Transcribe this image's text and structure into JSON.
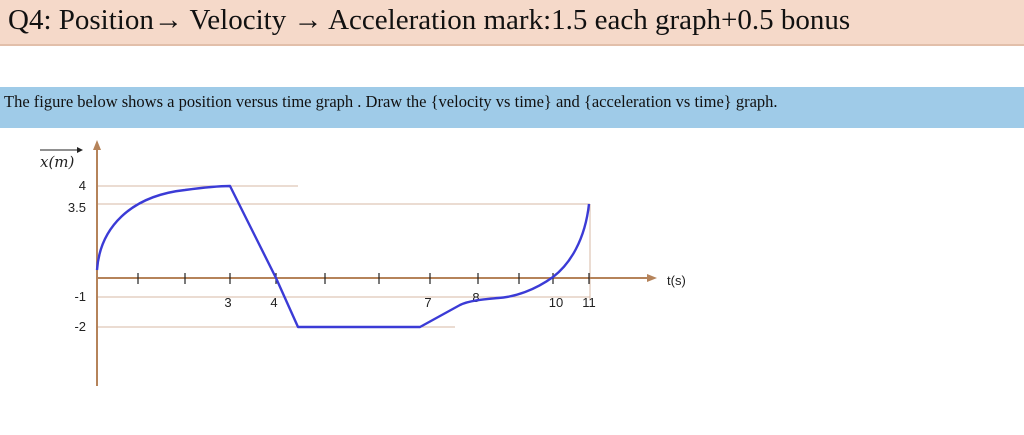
{
  "title": "Q4: Position→ Velocity → Acceleration   mark:1.5 each graph+0.5 bonus",
  "instruction": "The figure below shows a position versus time graph . Draw the {velocity vs time} and {acceleration vs time} graph.",
  "colors": {
    "title_bg": "#f5d9c9",
    "instruction_bg": "#9fcbe8",
    "curve": "#3b3bd6",
    "axis": "#b5835a",
    "gridline": "#d7b8a6"
  },
  "chart_data": {
    "type": "line",
    "ylabel": "x(m)",
    "xlabel": "t(s)",
    "y_tick_labels": [
      "4",
      "3.5",
      "-1",
      "-2"
    ],
    "x_tick_labels": [
      "3",
      "4",
      "7",
      "8",
      "10",
      "11"
    ],
    "series": [
      {
        "values": [
          {
            "t": 0,
            "x": 0.3,
            "segment": "curve"
          },
          {
            "t": 3,
            "x": 4
          },
          {
            "t": 4,
            "x": 0
          },
          {
            "t": 4.5,
            "x": -2
          },
          {
            "t": 7,
            "x": -2
          },
          {
            "t": 8,
            "x": -0.9
          },
          {
            "t": 8.3,
            "x": -0.9
          },
          {
            "t": 10,
            "x": 0
          },
          {
            "t": 11,
            "x": 3.5
          }
        ]
      }
    ]
  }
}
